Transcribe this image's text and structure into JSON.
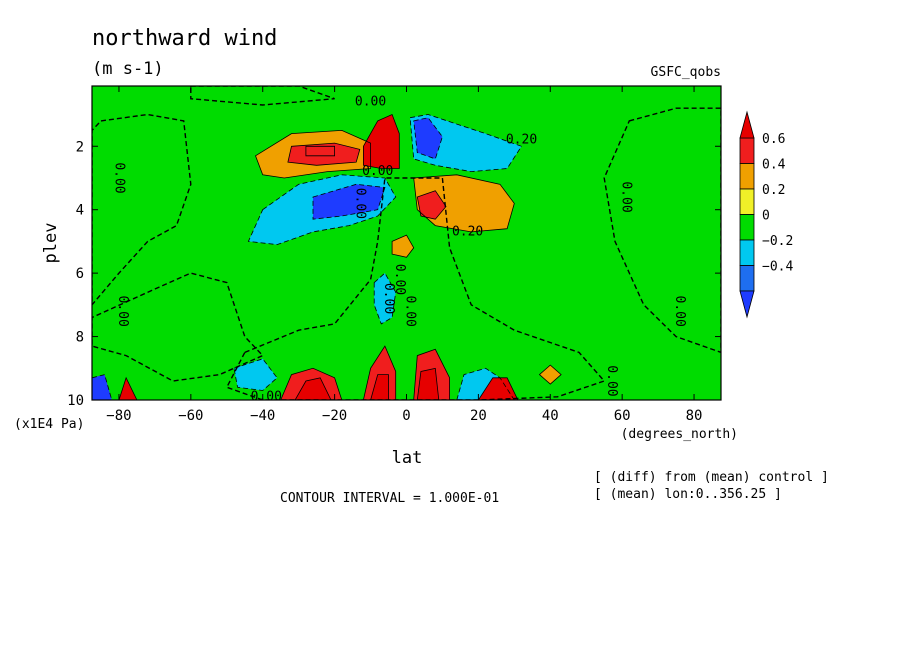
{
  "chart_data": {
    "type": "heatmap",
    "title": "northward wind",
    "units": "(m s-1)",
    "dataset": "GSFC_qobs",
    "xlabel": "lat",
    "xunits": "(degrees_north)",
    "ylabel": "plev",
    "yunits": "(x1E4 Pa)",
    "xlim": [
      -87.5,
      87.5
    ],
    "ylim": [
      10,
      0.1
    ],
    "x_ticks": [
      -80,
      -60,
      -40,
      -20,
      0,
      20,
      40,
      60,
      80
    ],
    "x_tick_labels": [
      "−80",
      "−60",
      "−40",
      "−20",
      "0",
      "20",
      "40",
      "60",
      "80"
    ],
    "y_ticks": [
      2,
      4,
      6,
      8,
      10
    ],
    "y_tick_labels": [
      "2",
      "4",
      "6",
      "8",
      "10"
    ],
    "colorbar": {
      "levels": [
        -0.4,
        -0.2,
        0,
        0.2,
        0.4,
        0.6
      ],
      "labels": [
        "−0.4",
        "−0.2",
        "0",
        "0.2",
        "0.4",
        "0.6"
      ],
      "colors": [
        "#1e6ef0",
        "#00c8f0",
        "#00dc00",
        "#f0f028",
        "#f0a000",
        "#f01e1e"
      ],
      "below_color": "#1e3cff",
      "above_color": "#e60000"
    },
    "contour_interval": "CONTOUR INTERVAL = 1.000E-01",
    "notes": [
      "[ (diff) from (mean) control ]",
      "[ (mean) lon:0..356.25 ]"
    ],
    "contour_labels": [
      "0.00",
      "0.00",
      "0.00",
      "0.00",
      "0.00",
      "0.00",
      "0.00",
      "0.00",
      "0.00",
      "0.20",
      "0.20",
      "0.00",
      "0.00",
      "0.00"
    ],
    "regions": [
      {
        "name": "sh-stratosphere-negative",
        "level": -0.1,
        "poly": [
          [
            -85,
            1.2
          ],
          [
            -72,
            1.0
          ],
          [
            -62,
            1.2
          ],
          [
            -60,
            3.2
          ],
          [
            -64,
            4.5
          ],
          [
            -72,
            5.0
          ],
          [
            -80,
            6.0
          ],
          [
            -87.5,
            7.0
          ],
          [
            -87.5,
            1.5
          ]
        ]
      },
      {
        "name": "sh-troposphere-negative",
        "level": -0.1,
        "poly": [
          [
            -70,
            6.5
          ],
          [
            -60,
            6.0
          ],
          [
            -50,
            6.3
          ],
          [
            -45,
            8.0
          ],
          [
            -40,
            8.6
          ],
          [
            -52,
            9.2
          ],
          [
            -65,
            9.4
          ],
          [
            -78,
            8.6
          ],
          [
            -87.5,
            8.3
          ],
          [
            -87.5,
            7.4
          ]
        ]
      },
      {
        "name": "equator-lower-negative",
        "level": -0.1,
        "poly": [
          [
            -45,
            8.5
          ],
          [
            -30,
            7.8
          ],
          [
            -20,
            7.6
          ],
          [
            -10,
            6.2
          ],
          [
            -8,
            5.0
          ],
          [
            -6,
            3.0
          ],
          [
            10,
            3.0
          ],
          [
            12,
            5.2
          ],
          [
            18,
            7.0
          ],
          [
            30,
            7.8
          ],
          [
            48,
            8.5
          ],
          [
            55,
            9.4
          ],
          [
            42,
            9.9
          ],
          [
            20,
            10
          ],
          [
            0,
            10
          ],
          [
            -20,
            10
          ],
          [
            -40,
            10
          ],
          [
            -50,
            9.6
          ]
        ]
      },
      {
        "name": "sh-jet-positive",
        "level": 0.3,
        "poly": [
          [
            -42,
            2.3
          ],
          [
            -32,
            1.6
          ],
          [
            -18,
            1.5
          ],
          [
            -10,
            1.9
          ],
          [
            -10,
            2.7
          ],
          [
            -22,
            2.8
          ],
          [
            -34,
            3.0
          ],
          [
            -40,
            2.9
          ]
        ]
      },
      {
        "name": "sh-jet-positive-core",
        "level": 0.4,
        "poly": [
          [
            -32,
            2.0
          ],
          [
            -20,
            1.9
          ],
          [
            -13,
            2.1
          ],
          [
            -14,
            2.5
          ],
          [
            -25,
            2.6
          ],
          [
            -33,
            2.5
          ]
        ]
      },
      {
        "name": "sh-jet-max",
        "level": 0.5,
        "poly": [
          [
            -28,
            2.0
          ],
          [
            -20,
            2.0
          ],
          [
            -20,
            2.3
          ],
          [
            -28,
            2.3
          ]
        ]
      },
      {
        "name": "equator-upper-positive-max",
        "level": 0.65,
        "poly": [
          [
            -12,
            2.0
          ],
          [
            -8,
            1.2
          ],
          [
            -4,
            1.0
          ],
          [
            -2,
            1.6
          ],
          [
            -2,
            2.7
          ],
          [
            -7,
            2.7
          ],
          [
            -12,
            2.6
          ]
        ]
      },
      {
        "name": "equator-upper-negative",
        "level": -0.3,
        "poly": [
          [
            1,
            1.1
          ],
          [
            6,
            1.0
          ],
          [
            14,
            1.3
          ],
          [
            22,
            1.6
          ],
          [
            32,
            2.0
          ],
          [
            28,
            2.7
          ],
          [
            18,
            2.8
          ],
          [
            8,
            2.6
          ],
          [
            2,
            2.4
          ]
        ]
      },
      {
        "name": "equator-upper-negative-core",
        "level": -0.5,
        "poly": [
          [
            2,
            1.2
          ],
          [
            6,
            1.1
          ],
          [
            10,
            1.7
          ],
          [
            8,
            2.4
          ],
          [
            3,
            2.2
          ]
        ]
      },
      {
        "name": "sh-mid-negative",
        "level": -0.3,
        "poly": [
          [
            -40,
            4.0
          ],
          [
            -30,
            3.2
          ],
          [
            -18,
            2.9
          ],
          [
            -6,
            3.0
          ],
          [
            -3,
            3.6
          ],
          [
            -8,
            4.2
          ],
          [
            -16,
            4.5
          ],
          [
            -26,
            4.7
          ],
          [
            -36,
            5.1
          ],
          [
            -44,
            5.0
          ]
        ]
      },
      {
        "name": "sh-mid-negative-core",
        "level": -0.5,
        "poly": [
          [
            -26,
            3.6
          ],
          [
            -14,
            3.2
          ],
          [
            -6,
            3.3
          ],
          [
            -8,
            4.0
          ],
          [
            -18,
            4.2
          ],
          [
            -26,
            4.3
          ]
        ]
      },
      {
        "name": "nh-mid-positive",
        "level": 0.3,
        "poly": [
          [
            2,
            3.0
          ],
          [
            14,
            2.9
          ],
          [
            26,
            3.2
          ],
          [
            30,
            3.8
          ],
          [
            28,
            4.6
          ],
          [
            18,
            4.7
          ],
          [
            8,
            4.5
          ],
          [
            3,
            4.0
          ]
        ]
      },
      {
        "name": "nh-mid-positive-core",
        "level": 0.45,
        "poly": [
          [
            3,
            3.6
          ],
          [
            8,
            3.4
          ],
          [
            11,
            3.9
          ],
          [
            8,
            4.3
          ],
          [
            4,
            4.2
          ]
        ]
      },
      {
        "name": "equator-small-positive",
        "level": 0.3,
        "poly": [
          [
            -4,
            5.0
          ],
          [
            0,
            4.8
          ],
          [
            2,
            5.2
          ],
          [
            0,
            5.5
          ],
          [
            -4,
            5.4
          ]
        ]
      },
      {
        "name": "lower-equator-negative",
        "level": -0.3,
        "poly": [
          [
            -9,
            6.3
          ],
          [
            -6,
            6.0
          ],
          [
            -3,
            6.6
          ],
          [
            -4,
            7.4
          ],
          [
            -7,
            7.6
          ],
          [
            -9,
            7.0
          ]
        ]
      },
      {
        "name": "sh-low-negative-wave",
        "level": -0.3,
        "poly": [
          [
            -48,
            9.0
          ],
          [
            -40,
            8.7
          ],
          [
            -36,
            9.3
          ],
          [
            -40,
            9.7
          ],
          [
            -47,
            9.6
          ]
        ]
      },
      {
        "name": "sh-low-positive",
        "level": 0.5,
        "poly": [
          [
            -35,
            10
          ],
          [
            -32,
            9.2
          ],
          [
            -26,
            9.0
          ],
          [
            -20,
            9.3
          ],
          [
            -18,
            10
          ]
        ]
      },
      {
        "name": "sh-low-positive-core",
        "level": 0.65,
        "poly": [
          [
            -31,
            10
          ],
          [
            -28,
            9.4
          ],
          [
            -24,
            9.3
          ],
          [
            -21,
            10
          ]
        ]
      },
      {
        "name": "equator-low-positive",
        "level": 0.5,
        "poly": [
          [
            -12,
            10
          ],
          [
            -10,
            9.0
          ],
          [
            -6,
            8.3
          ],
          [
            -3,
            9.1
          ],
          [
            -3,
            10
          ]
        ]
      },
      {
        "name": "equator-low-positive-core",
        "level": 0.65,
        "poly": [
          [
            -10,
            10
          ],
          [
            -8,
            9.2
          ],
          [
            -5,
            9.2
          ],
          [
            -5,
            10
          ]
        ]
      },
      {
        "name": "nh-low-positive",
        "level": 0.5,
        "poly": [
          [
            2,
            10
          ],
          [
            3,
            8.6
          ],
          [
            8,
            8.4
          ],
          [
            12,
            9.3
          ],
          [
            12,
            10
          ]
        ]
      },
      {
        "name": "nh-low-positive-core",
        "level": 0.65,
        "poly": [
          [
            3,
            10
          ],
          [
            4,
            9.1
          ],
          [
            8,
            9.0
          ],
          [
            9,
            10
          ]
        ]
      },
      {
        "name": "nh-low-negative",
        "level": -0.3,
        "poly": [
          [
            14,
            10
          ],
          [
            16,
            9.2
          ],
          [
            22,
            9.0
          ],
          [
            26,
            9.3
          ],
          [
            30,
            10
          ]
        ]
      },
      {
        "name": "nh-low-positive-2",
        "level": 0.65,
        "poly": [
          [
            20,
            10
          ],
          [
            24,
            9.3
          ],
          [
            28,
            9.3
          ],
          [
            31,
            10
          ]
        ]
      },
      {
        "name": "nh-low-small-positive",
        "level": 0.3,
        "poly": [
          [
            37,
            9.2
          ],
          [
            40,
            8.9
          ],
          [
            43,
            9.2
          ],
          [
            40,
            9.5
          ]
        ]
      },
      {
        "name": "sh-low-negative-polar",
        "level": -0.5,
        "poly": [
          [
            -87.5,
            9.3
          ],
          [
            -84,
            9.2
          ],
          [
            -82,
            10
          ],
          [
            -87.5,
            10
          ]
        ]
      },
      {
        "name": "sh-low-positive-polar",
        "level": 0.65,
        "poly": [
          [
            -80,
            10
          ],
          [
            -78,
            9.3
          ],
          [
            -75,
            10
          ]
        ]
      },
      {
        "name": "nh-polar-negative",
        "level": -0.1,
        "poly": [
          [
            62,
            1.2
          ],
          [
            75,
            0.8
          ],
          [
            87.5,
            0.8
          ],
          [
            87.5,
            8.5
          ],
          [
            75,
            8.0
          ],
          [
            66,
            7.0
          ],
          [
            58,
            5.0
          ],
          [
            55,
            3.0
          ]
        ]
      },
      {
        "name": "nh-top-strip-negative",
        "level": -0.1,
        "poly": [
          [
            -60,
            0.1
          ],
          [
            -30,
            0.1
          ],
          [
            -20,
            0.5
          ],
          [
            -40,
            0.7
          ],
          [
            -60,
            0.5
          ]
        ]
      }
    ]
  }
}
